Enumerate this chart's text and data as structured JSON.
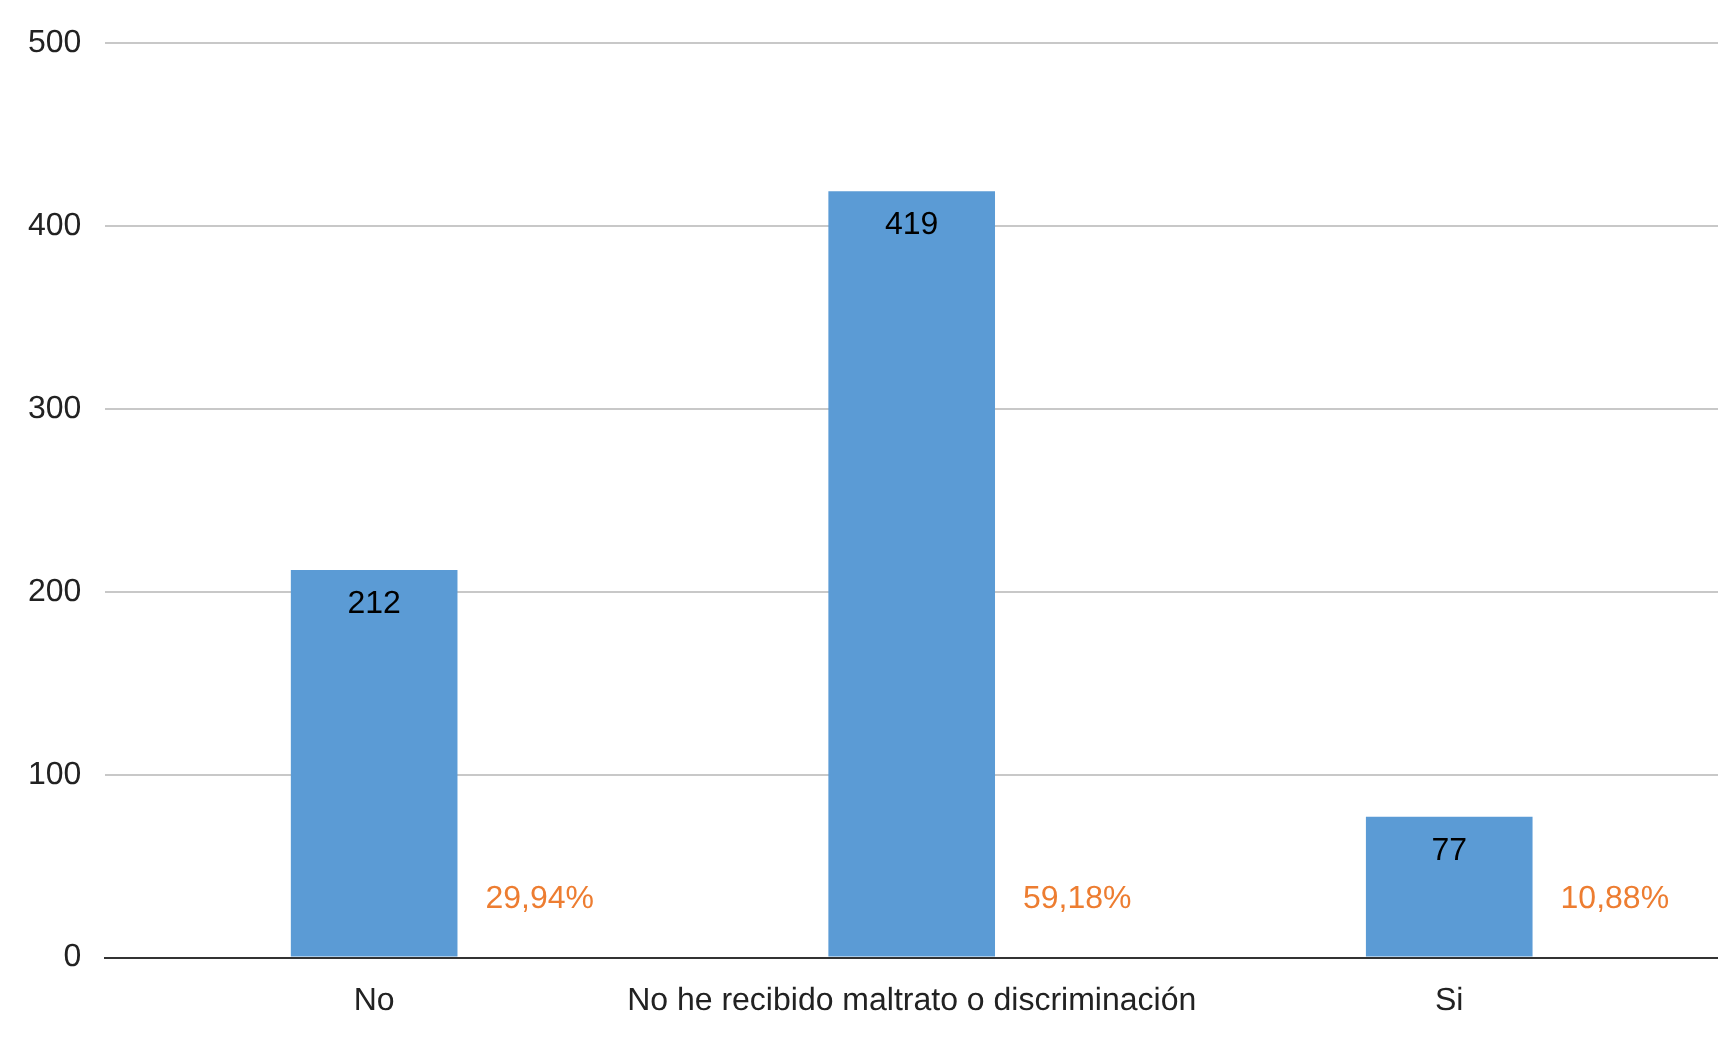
{
  "chart_data": {
    "type": "bar",
    "categories": [
      "No",
      "No he recibido maltrato o discriminación",
      "Si"
    ],
    "values": [
      212,
      419,
      77
    ],
    "color": "#5b9bd5",
    "data_labels": true,
    "ylim": [
      0,
      500
    ],
    "yticks": [
      0,
      100,
      200,
      300,
      400,
      500
    ],
    "grid": "y",
    "legend": false,
    "annotations": [
      "29,94%",
      "59,18%",
      "10,88%"
    ]
  }
}
